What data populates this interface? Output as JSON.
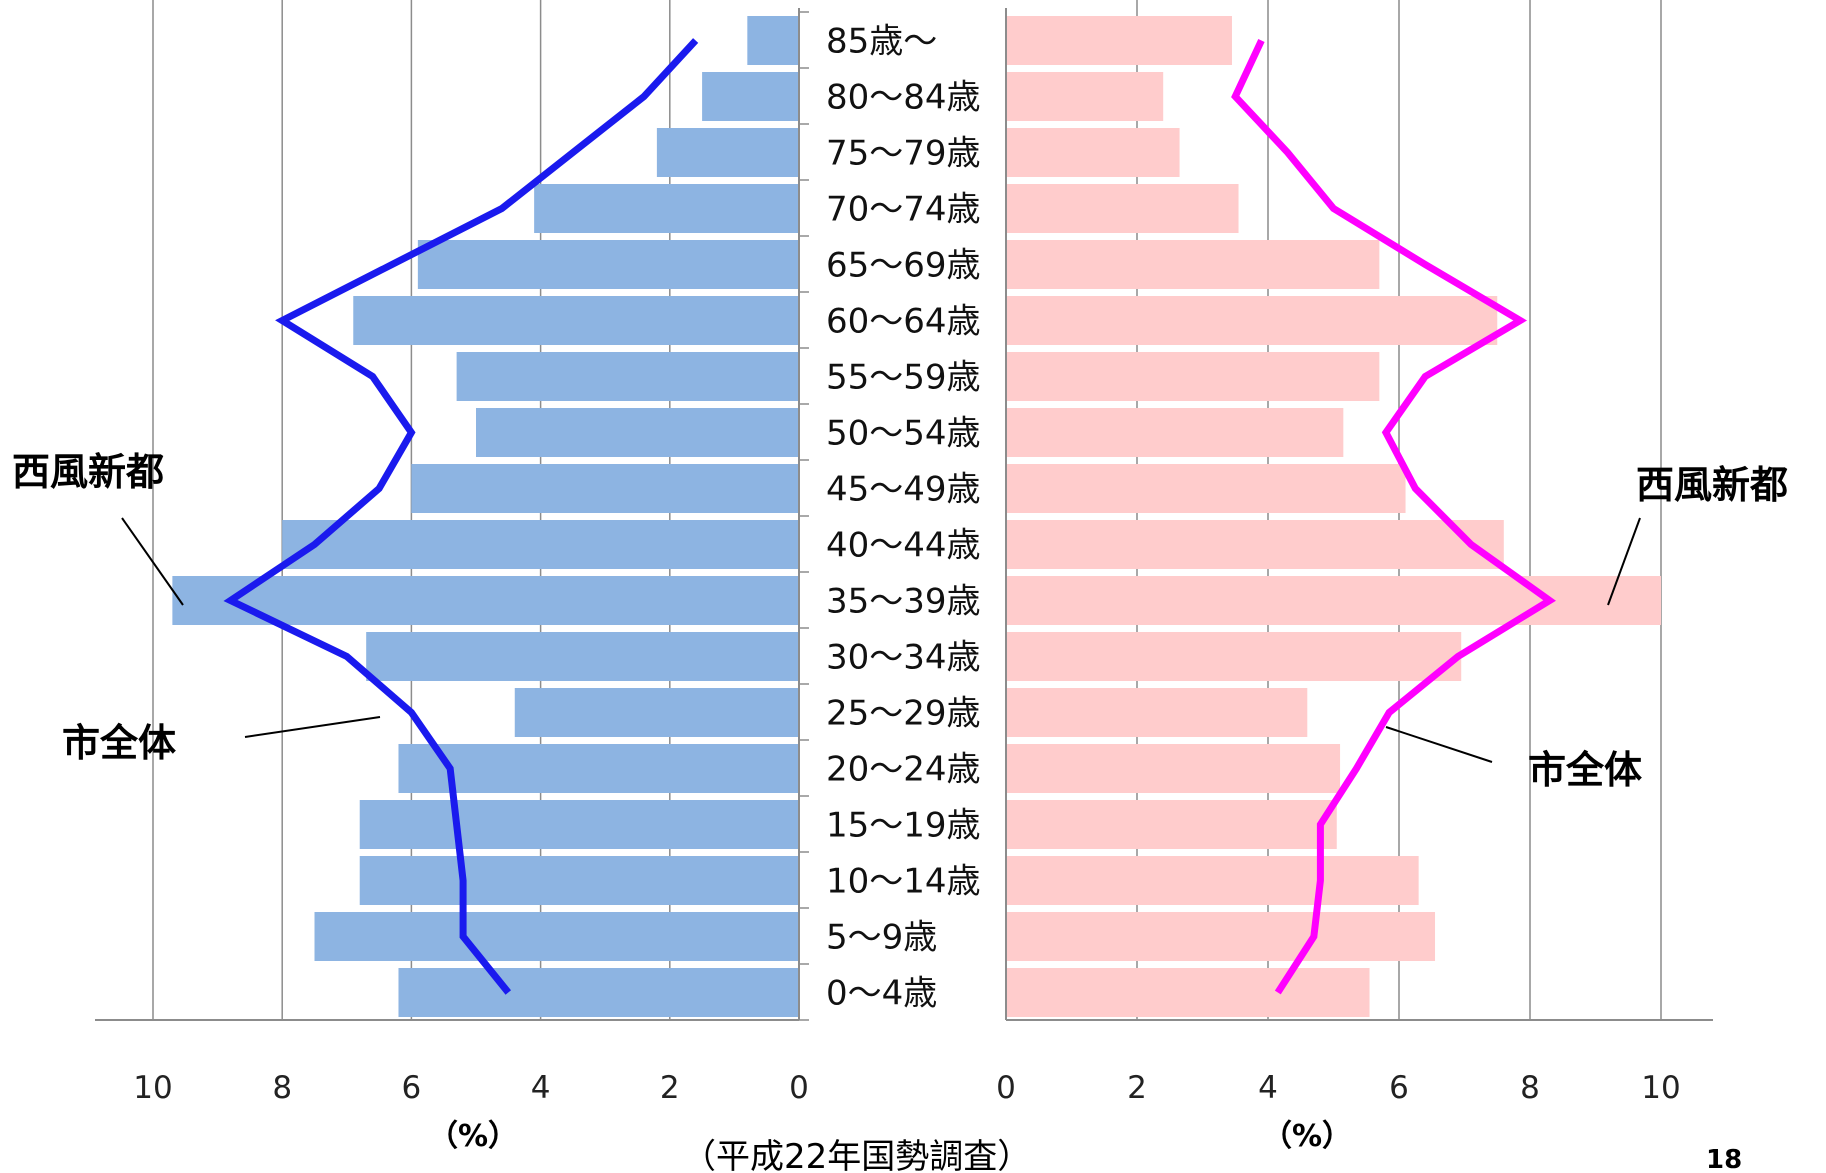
{
  "chart_data": {
    "type": "bar",
    "subtype": "population-pyramid",
    "orientation": "horizontal",
    "categories": [
      "85歳～",
      "80～84歳",
      "75～79歳",
      "70～74歳",
      "65～69歳",
      "60～64歳",
      "55～59歳",
      "50～54歳",
      "45～49歳",
      "40～44歳",
      "35～39歳",
      "30～34歳",
      "25～29歳",
      "20～24歳",
      "15～19歳",
      "10～14歳",
      "5～9歳",
      "0～4歳"
    ],
    "xlim": [
      0,
      10
    ],
    "ticks": [
      "10",
      "8",
      "6",
      "4",
      "2",
      "0",
      "0",
      "2",
      "4",
      "6",
      "8",
      "10"
    ],
    "unit_left": "（%）",
    "unit_right": "（%）",
    "source": "（平成22年国勢調査）",
    "grid": true,
    "series": [
      {
        "side": "left",
        "kind": "bar",
        "color": "#8db4e2",
        "values": [
          0.8,
          1.5,
          2.2,
          4.1,
          5.9,
          6.9,
          5.3,
          5.0,
          6.0,
          8.0,
          9.7,
          6.7,
          4.4,
          6.2,
          6.8,
          6.8,
          7.5,
          6.2
        ]
      },
      {
        "side": "left",
        "kind": "line",
        "color": "#1a1aee",
        "values": [
          1.6,
          2.4,
          3.5,
          4.6,
          6.3,
          8.0,
          6.6,
          6.0,
          6.5,
          7.5,
          8.8,
          7.0,
          6.0,
          5.4,
          5.3,
          5.2,
          5.2,
          4.5
        ]
      },
      {
        "side": "right",
        "kind": "bar",
        "color": "#ffcccc",
        "values": [
          3.45,
          2.4,
          2.65,
          3.55,
          5.7,
          7.5,
          5.7,
          5.15,
          6.1,
          7.6,
          10.0,
          6.95,
          4.6,
          5.1,
          5.05,
          6.3,
          6.55,
          5.55
        ]
      },
      {
        "side": "right",
        "kind": "line",
        "color": "#ff00ff",
        "values": [
          3.9,
          3.5,
          4.3,
          5.0,
          6.4,
          7.85,
          6.4,
          5.8,
          6.25,
          7.1,
          8.3,
          6.9,
          5.85,
          5.35,
          4.8,
          4.8,
          4.7,
          4.15
        ]
      }
    ]
  },
  "annotations": {
    "left_district": "西風新都",
    "left_city": "市全体",
    "right_district": "西風新都",
    "right_city": "市全体"
  },
  "page_number": "18"
}
